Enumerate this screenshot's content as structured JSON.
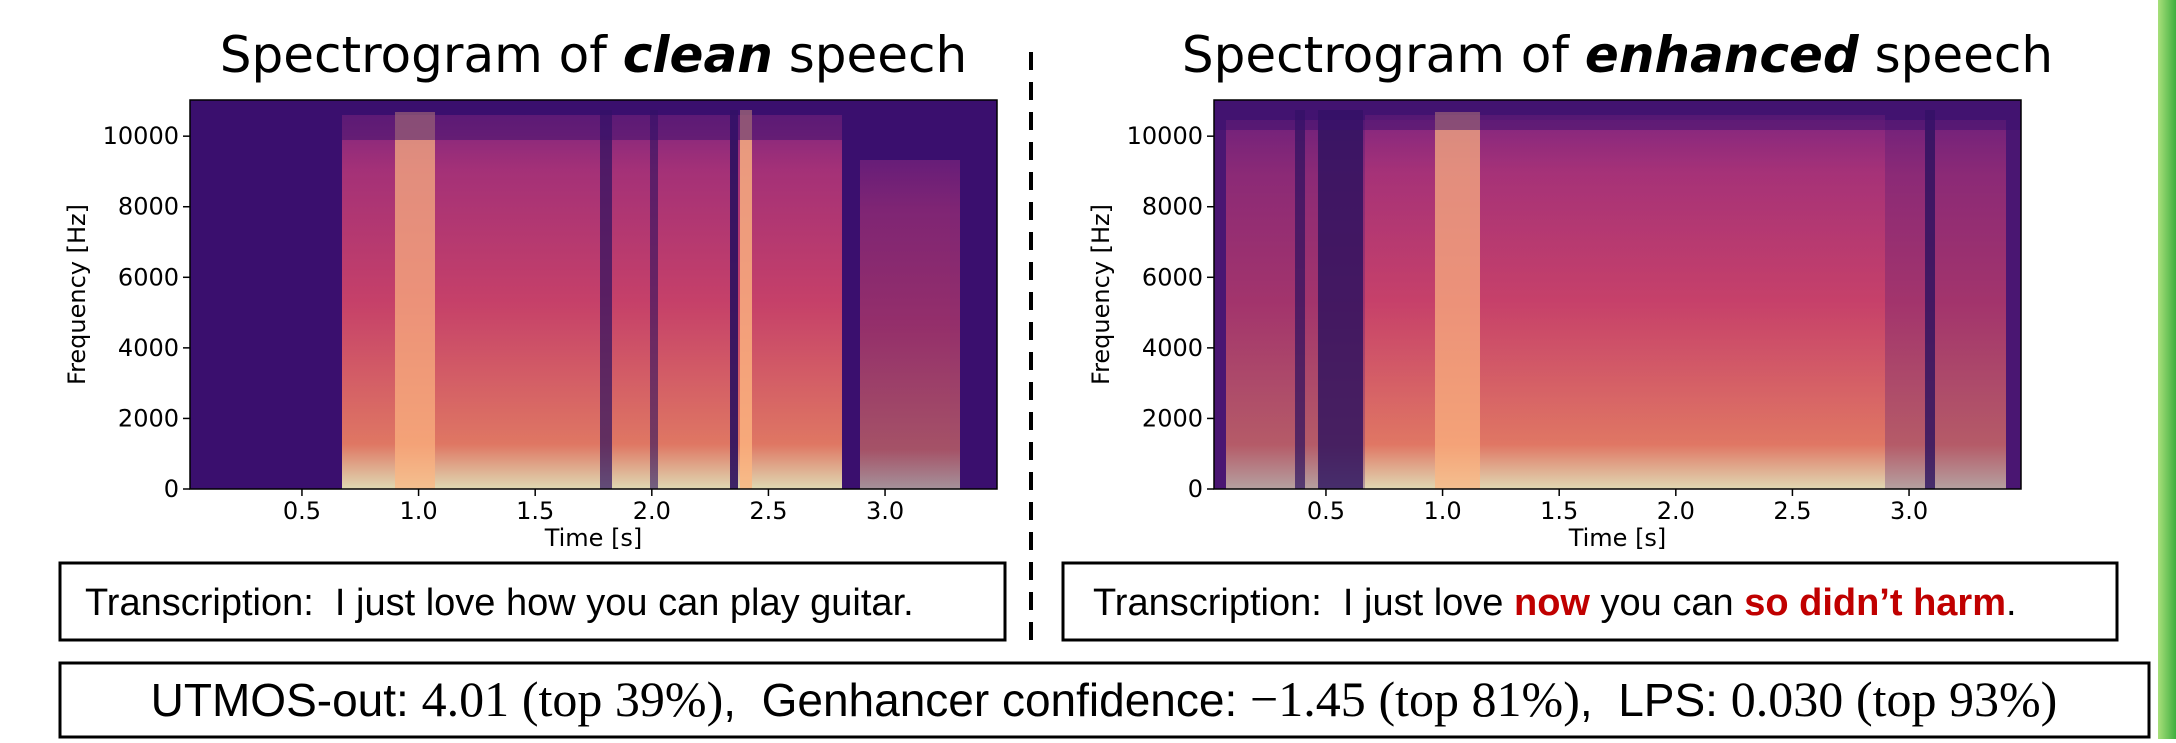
{
  "chart_data": [
    {
      "type": "spectrogram",
      "title": [
        "Spectrogram of",
        "clean",
        "speech"
      ],
      "xlabel": "Time [s]",
      "ylabel": "Frequency [Hz]",
      "xlim": [
        0.02,
        3.48
      ],
      "ylim": [
        0,
        11025
      ],
      "xticks": [
        0.5,
        {
          "value": 1,
          "label": "1.0"
        },
        1.5,
        {
          "value": 2,
          "label": "2.0"
        },
        2.5,
        {
          "value": 3,
          "label": "3.0"
        }
      ],
      "yticks": [
        0,
        2000,
        4000,
        6000,
        8000,
        10000
      ]
    },
    {
      "type": "spectrogram",
      "title": [
        "Spectrogram of",
        "enhanced",
        "speech"
      ],
      "xlabel": "Time [s]",
      "ylabel": "Frequency [Hz]",
      "xlim": [
        0.02,
        3.48
      ],
      "ylim": [
        0,
        11025
      ],
      "xticks": [
        0.5,
        {
          "value": 1,
          "label": "1.0"
        },
        1.5,
        {
          "value": 2,
          "label": "2.0"
        },
        2.5,
        {
          "value": 3,
          "label": "3.0"
        }
      ],
      "yticks": [
        0,
        2000,
        4000,
        6000,
        8000,
        10000
      ]
    }
  ],
  "transcriptions": [
    {
      "label": "Transcription:",
      "segments": [
        {
          "text": "I just love how you can play guitar."
        }
      ]
    },
    {
      "label": "Transcription:",
      "segments": [
        {
          "text": "I just love"
        },
        {
          "text": "now",
          "highlight": true
        },
        {
          "text": "you can"
        },
        {
          "text": "so didn’t harm",
          "highlight": true
        },
        {
          "text": "."
        }
      ]
    }
  ],
  "highlight_color": "#c00000",
  "metrics": {
    "separator": ",",
    "items": [
      {
        "label": "UTMOS-out:",
        "value": "4.01",
        "rank": "(top 39%)"
      },
      {
        "label": "Genhancer confidence:",
        "value": "−1.45",
        "rank": "(top 81%)"
      },
      {
        "label": "LPS:",
        "value": "0.030",
        "rank": "(top 93%)"
      }
    ]
  }
}
